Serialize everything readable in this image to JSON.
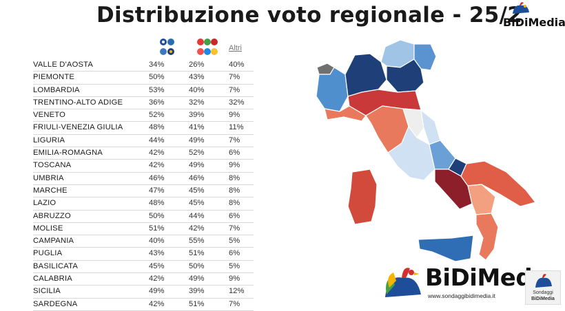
{
  "title": "Distribuzione voto regionale - 25/2",
  "brand": {
    "name": "BiDiMedia",
    "bottom_name": "BiDiMed",
    "url": "www.sondaggibidimedia.it",
    "corner_line1": "Sondaggi",
    "corner_line2": "BiDiMedia"
  },
  "chart_data": {
    "type": "table",
    "columns": [
      "",
      "",
      "Altri"
    ],
    "rows": [
      {
        "region": "VALLE D'AOSTA",
        "values": [
          "34%",
          "26%",
          "40%"
        ],
        "colors": [
          "",
          "",
          "grey"
        ]
      },
      {
        "region": "PIEMONTE",
        "values": [
          "50%",
          "43%",
          "7%"
        ],
        "colors": [
          "blue",
          "",
          ""
        ]
      },
      {
        "region": "LOMBARDIA",
        "values": [
          "53%",
          "40%",
          "7%"
        ],
        "colors": [
          "blue",
          "",
          ""
        ]
      },
      {
        "region": "TRENTINO-ALTO ADIGE",
        "values": [
          "36%",
          "32%",
          "32%"
        ],
        "colors": [
          "blue",
          "",
          ""
        ]
      },
      {
        "region": "VENETO",
        "values": [
          "52%",
          "39%",
          "9%"
        ],
        "colors": [
          "blue",
          "",
          ""
        ]
      },
      {
        "region": "FRIULI-VENEZIA GIULIA",
        "values": [
          "48%",
          "41%",
          "11%"
        ],
        "colors": [
          "blue",
          "",
          ""
        ]
      },
      {
        "region": "LIGURIA",
        "values": [
          "44%",
          "49%",
          "7%"
        ],
        "colors": [
          "",
          "red",
          ""
        ]
      },
      {
        "region": "EMILIA-ROMAGNA",
        "values": [
          "42%",
          "52%",
          "6%"
        ],
        "colors": [
          "",
          "red",
          ""
        ]
      },
      {
        "region": "TOSCANA",
        "values": [
          "42%",
          "49%",
          "9%"
        ],
        "colors": [
          "",
          "red",
          ""
        ]
      },
      {
        "region": "UMBRIA",
        "values": [
          "46%",
          "46%",
          "8%"
        ],
        "colors": [
          "",
          "",
          ""
        ]
      },
      {
        "region": "MARCHE",
        "values": [
          "47%",
          "45%",
          "8%"
        ],
        "colors": [
          "blue",
          "",
          ""
        ]
      },
      {
        "region": "LAZIO",
        "values": [
          "48%",
          "45%",
          "8%"
        ],
        "colors": [
          "blue",
          "",
          ""
        ]
      },
      {
        "region": "ABRUZZO",
        "values": [
          "50%",
          "44%",
          "6%"
        ],
        "colors": [
          "blue",
          "",
          ""
        ]
      },
      {
        "region": "MOLISE",
        "values": [
          "51%",
          "42%",
          "7%"
        ],
        "colors": [
          "blue",
          "",
          ""
        ]
      },
      {
        "region": "CAMPANIA",
        "values": [
          "40%",
          "55%",
          "5%"
        ],
        "colors": [
          "",
          "red",
          ""
        ]
      },
      {
        "region": "PUGLIA",
        "values": [
          "43%",
          "51%",
          "6%"
        ],
        "colors": [
          "",
          "red",
          ""
        ]
      },
      {
        "region": "BASILICATA",
        "values": [
          "45%",
          "50%",
          "5%"
        ],
        "colors": [
          "",
          "red",
          ""
        ]
      },
      {
        "region": "CALABRIA",
        "values": [
          "42%",
          "49%",
          "9%"
        ],
        "colors": [
          "",
          "red",
          ""
        ]
      },
      {
        "region": "SICILIA",
        "values": [
          "49%",
          "39%",
          "12%"
        ],
        "colors": [
          "blue",
          "",
          ""
        ]
      },
      {
        "region": "SARDEGNA",
        "values": [
          "42%",
          "51%",
          "7%"
        ],
        "colors": [
          "",
          "red",
          ""
        ]
      }
    ],
    "map_colors": {
      "VALLE D'AOSTA": "#707070",
      "PIEMONTE": "#4f8fce",
      "LOMBARDIA": "#1e3f78",
      "TRENTINO-ALTO ADIGE": "#9fc4e6",
      "VENETO": "#1e3f78",
      "FRIULI-VENEZIA GIULIA": "#5a93cf",
      "LIGURIA": "#e8795c",
      "EMILIA-ROMAGNA": "#c9393a",
      "TOSCANA": "#e8795c",
      "UMBRIA": "#eeeeee",
      "MARCHE": "#cfe1f2",
      "LAZIO": "#cfe1f2",
      "ABRUZZO": "#6aa0d6",
      "MOLISE": "#1e3f78",
      "CAMPANIA": "#8c1f2a",
      "PUGLIA": "#e05e47",
      "BASILICATA": "#f2a080",
      "CALABRIA": "#e8795c",
      "SICILIA": "#2f6db4",
      "SARDEGNA": "#d24a3c"
    }
  }
}
